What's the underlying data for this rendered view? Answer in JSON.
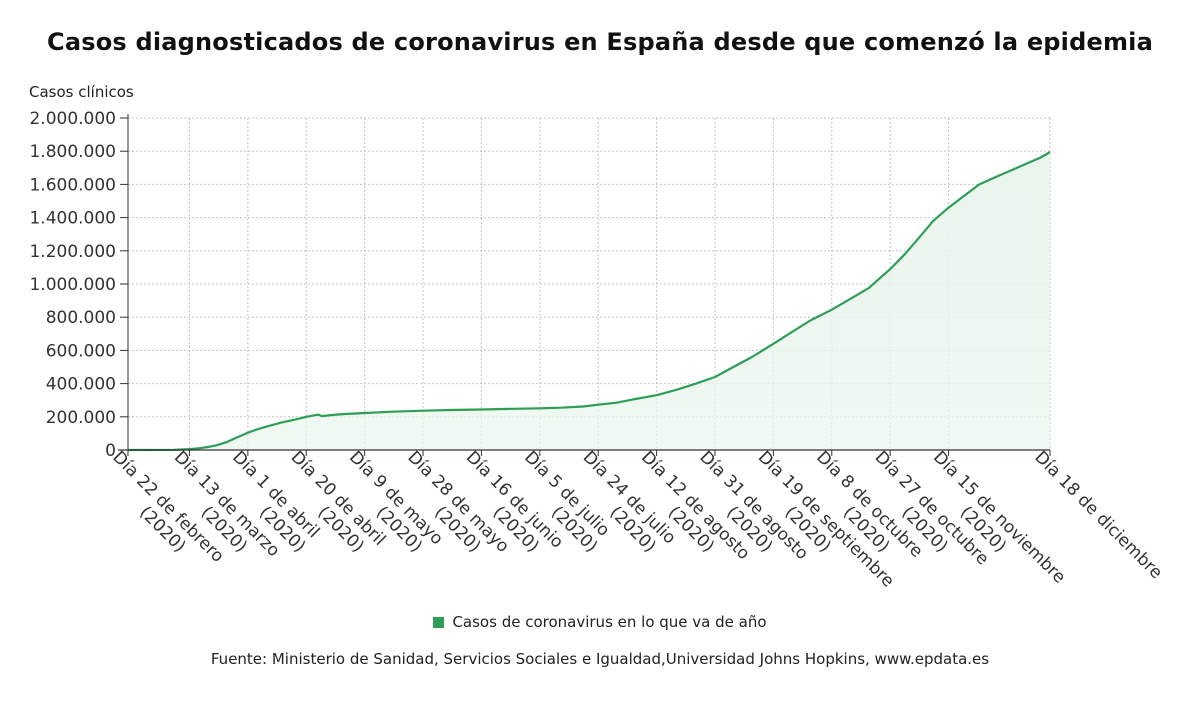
{
  "chart_data": {
    "type": "area",
    "title": "Casos diagnosticados de coronavirus en España desde que comenzó la epidemia",
    "ylabel": "Casos clínicos",
    "xlabel": "",
    "ylim": [
      0,
      2000000
    ],
    "y_ticks": [
      0,
      200000,
      400000,
      600000,
      800000,
      1000000,
      1200000,
      1400000,
      1600000,
      1800000,
      2000000
    ],
    "y_tick_labels": [
      "0",
      "200.000",
      "400.000",
      "600.000",
      "800.000",
      "1.000.000",
      "1.200.000",
      "1.400.000",
      "1.600.000",
      "1.800.000",
      "2.000.000"
    ],
    "x_range": [
      "2020-02-22",
      "2020-12-18"
    ],
    "x_ticks": [
      "2020-02-22",
      "2020-03-13",
      "2020-04-01",
      "2020-04-20",
      "2020-05-09",
      "2020-05-28",
      "2020-06-16",
      "2020-07-05",
      "2020-07-24",
      "2020-08-12",
      "2020-08-31",
      "2020-09-19",
      "2020-10-08",
      "2020-10-27",
      "2020-11-15",
      "2020-12-18"
    ],
    "x_tick_labels": [
      [
        "Día 22 de febrero",
        "(2020)"
      ],
      [
        "Día 13 de marzo",
        "(2020)"
      ],
      [
        "Día 1 de abril",
        "(2020)"
      ],
      [
        "Día 20 de abril",
        "(2020)"
      ],
      [
        "Día 9 de mayo",
        "(2020)"
      ],
      [
        "Día 28 de mayo",
        "(2020)"
      ],
      [
        "Día 16 de junio",
        "(2020)"
      ],
      [
        "Día 5 de julio",
        "(2020)"
      ],
      [
        "Día 24 de julio",
        "(2020)"
      ],
      [
        "Día 12 de agosto",
        "(2020)"
      ],
      [
        "Día 31 de agosto",
        "(2020)"
      ],
      [
        "Día 19 de septiembre",
        "(2020)"
      ],
      [
        "Día 8 de octubre",
        "(2020)"
      ],
      [
        "Día 27 de octubre",
        "(2020)"
      ],
      [
        "Día 15 de noviembre",
        "(2020)"
      ],
      [
        "Día 18 de diciembre",
        ""
      ]
    ],
    "grid": true,
    "legend_position": "bottom-center",
    "series": [
      {
        "name": "Casos de coronavirus en lo que va de año",
        "color": "#2e9e57",
        "fill": "#e9f5ec",
        "points": [
          [
            "2020-02-22",
            0
          ],
          [
            "2020-03-08",
            600
          ],
          [
            "2020-03-13",
            5200
          ],
          [
            "2020-03-16",
            10000
          ],
          [
            "2020-03-19",
            18000
          ],
          [
            "2020-03-22",
            29000
          ],
          [
            "2020-03-25",
            47000
          ],
          [
            "2020-03-28",
            72000
          ],
          [
            "2020-04-01",
            104000
          ],
          [
            "2020-04-04",
            125000
          ],
          [
            "2020-04-08",
            146000
          ],
          [
            "2020-04-12",
            166000
          ],
          [
            "2020-04-16",
            182000
          ],
          [
            "2020-04-20",
            200000
          ],
          [
            "2020-04-24",
            213000
          ],
          [
            "2020-04-25",
            204000
          ],
          [
            "2020-04-28",
            210000
          ],
          [
            "2020-05-02",
            216000
          ],
          [
            "2020-05-06",
            220000
          ],
          [
            "2020-05-09",
            223000
          ],
          [
            "2020-05-18",
            231000
          ],
          [
            "2020-05-28",
            237000
          ],
          [
            "2020-06-06",
            241000
          ],
          [
            "2020-06-16",
            244000
          ],
          [
            "2020-06-26",
            248000
          ],
          [
            "2020-07-05",
            251000
          ],
          [
            "2020-07-12",
            255000
          ],
          [
            "2020-07-19",
            262000
          ],
          [
            "2020-07-24",
            273000
          ],
          [
            "2020-07-30",
            285000
          ],
          [
            "2020-08-06",
            310000
          ],
          [
            "2020-08-12",
            330000
          ],
          [
            "2020-08-18",
            360000
          ],
          [
            "2020-08-24",
            395000
          ],
          [
            "2020-08-31",
            440000
          ],
          [
            "2020-09-06",
            500000
          ],
          [
            "2020-09-12",
            560000
          ],
          [
            "2020-09-19",
            640000
          ],
          [
            "2020-09-25",
            710000
          ],
          [
            "2020-10-01",
            780000
          ],
          [
            "2020-10-08",
            845000
          ],
          [
            "2020-10-14",
            910000
          ],
          [
            "2020-10-20",
            975000
          ],
          [
            "2020-10-27",
            1090000
          ],
          [
            "2020-11-01",
            1185000
          ],
          [
            "2020-11-05",
            1270000
          ],
          [
            "2020-11-10",
            1380000
          ],
          [
            "2020-11-15",
            1460000
          ],
          [
            "2020-11-20",
            1530000
          ],
          [
            "2020-11-25",
            1600000
          ],
          [
            "2020-12-01",
            1650000
          ],
          [
            "2020-12-06",
            1690000
          ],
          [
            "2020-12-11",
            1730000
          ],
          [
            "2020-12-15",
            1762000
          ],
          [
            "2020-12-18",
            1795000
          ]
        ]
      }
    ]
  },
  "legend": {
    "label": "Casos de coronavirus en lo que va de año",
    "color": "#2e9e57"
  },
  "source": "Fuente: Ministerio de Sanidad, Servicios Sociales e Igualdad,Universidad Johns Hopkins, www.epdata.es"
}
